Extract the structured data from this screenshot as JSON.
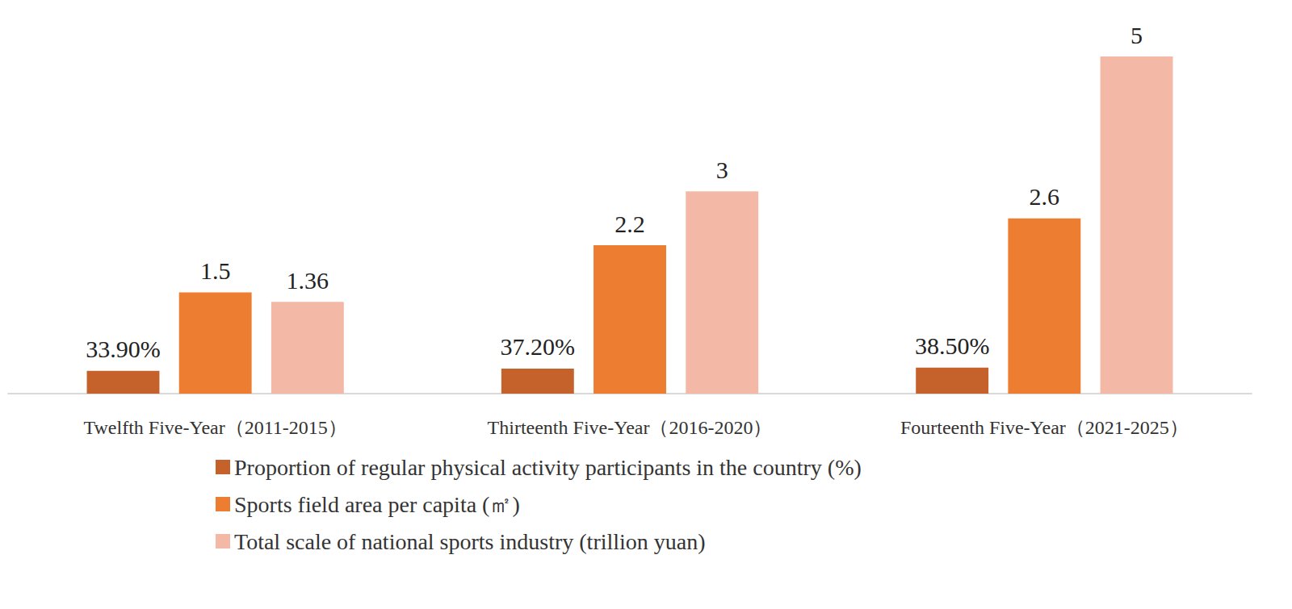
{
  "chart_data": {
    "type": "bar",
    "categories": [
      "Twelfth Five-Year（2011-2015）",
      "Thirteenth Five-Year（2016-2020）",
      "Fourteenth Five-Year（2021-2025）"
    ],
    "series": [
      {
        "name": "Proportion of regular physical activity participants in the country (%)",
        "color": "#c5622b",
        "values": [
          0.339,
          0.372,
          0.385
        ],
        "value_labels": [
          "33.90%",
          "37.20%",
          "38.50%"
        ]
      },
      {
        "name": "Sports field area per capita (㎡)",
        "color": "#ed7d31",
        "values": [
          1.5,
          2.2,
          2.6
        ]
      },
      {
        "name": "Total scale of national sports industry (trillion yuan)",
        "color": "#f4b9a6",
        "values": [
          1.36,
          3,
          5
        ]
      }
    ],
    "ylim": [
      0,
      5
    ],
    "yticks": [
      0,
      1,
      2,
      3,
      4,
      5
    ],
    "grid": false,
    "legend": "bottom",
    "data_labels": true,
    "tick_labels": "x"
  }
}
